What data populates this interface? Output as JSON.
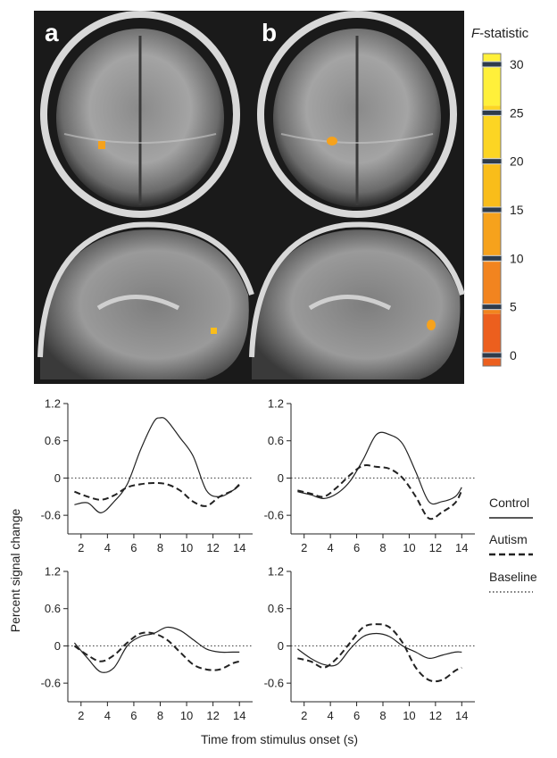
{
  "figure": {
    "panel_labels": [
      "a",
      "b"
    ],
    "colorbar": {
      "title_italic": "F",
      "title_rest": "-statistic",
      "ticks": [
        "30",
        "25",
        "20",
        "15",
        "10",
        "5",
        "0"
      ],
      "values": [
        30,
        25,
        20,
        15,
        10,
        5,
        0
      ],
      "colors": [
        "#fff03a",
        "#fcd523",
        "#f9bd1a",
        "#f6a21c",
        "#f2841f",
        "#ec5f1e"
      ]
    },
    "legend": {
      "entries": [
        {
          "label": "Control",
          "style": "solid"
        },
        {
          "label": "Autism",
          "style": "dashed"
        },
        {
          "label": "Baseline",
          "style": "dotted"
        }
      ]
    },
    "ylabel": "Percent signal change",
    "xlabel": "Time from stimulus onset (s)",
    "brain_images": [
      {
        "panel": "a",
        "view": "coronal",
        "activation": true
      },
      {
        "panel": "b",
        "view": "coronal",
        "activation": true
      },
      {
        "panel": "a",
        "view": "sagittal",
        "activation": true
      },
      {
        "panel": "b",
        "view": "sagittal",
        "activation": true
      }
    ]
  },
  "chart_data": [
    {
      "type": "line",
      "position": "top-left",
      "xlim": [
        1,
        15
      ],
      "ylim": [
        -0.9,
        1.2
      ],
      "xticks": [
        "2",
        "4",
        "6",
        "8",
        "10",
        "12",
        "14"
      ],
      "yticks": [
        "1.2",
        "0.6",
        "0",
        "-0.6"
      ],
      "baseline": 0,
      "series": [
        {
          "name": "Control",
          "style": "solid",
          "x": [
            1.5,
            2.5,
            3.5,
            4.5,
            5.5,
            6.5,
            7.5,
            8.0,
            8.5,
            9.5,
            10.5,
            11.5,
            12.5,
            13.5,
            14.0
          ],
          "y": [
            -0.43,
            -0.4,
            -0.56,
            -0.38,
            -0.1,
            0.45,
            0.9,
            0.97,
            0.93,
            0.65,
            0.35,
            -0.2,
            -0.3,
            -0.2,
            -0.12
          ]
        },
        {
          "name": "Autism",
          "style": "dashed",
          "x": [
            1.5,
            2.5,
            3.5,
            4.5,
            5.5,
            6.5,
            7.5,
            8.5,
            9.5,
            10.5,
            11.5,
            12.5,
            13.5,
            14.0
          ],
          "y": [
            -0.22,
            -0.3,
            -0.35,
            -0.28,
            -0.15,
            -0.1,
            -0.08,
            -0.1,
            -0.2,
            -0.38,
            -0.45,
            -0.3,
            -0.2,
            -0.1
          ]
        }
      ]
    },
    {
      "type": "line",
      "position": "top-right",
      "xlim": [
        1,
        15
      ],
      "ylim": [
        -0.9,
        1.2
      ],
      "xticks": [
        "2",
        "4",
        "6",
        "8",
        "10",
        "12",
        "14"
      ],
      "yticks": [
        "1.2",
        "0.6",
        "0",
        "-0.6"
      ],
      "baseline": 0,
      "series": [
        {
          "name": "Control",
          "style": "solid",
          "x": [
            1.5,
            2.5,
            3.5,
            4.5,
            5.5,
            6.5,
            7.5,
            8.5,
            9.5,
            10.5,
            11.5,
            12.5,
            13.5,
            14.0
          ],
          "y": [
            -0.22,
            -0.27,
            -0.33,
            -0.25,
            -0.05,
            0.3,
            0.7,
            0.7,
            0.55,
            0.1,
            -0.38,
            -0.38,
            -0.3,
            -0.15
          ]
        },
        {
          "name": "Autism",
          "style": "dashed",
          "x": [
            1.5,
            2.5,
            3.5,
            4.5,
            5.5,
            6.5,
            7.5,
            8.5,
            9.5,
            10.5,
            11.5,
            12.5,
            13.5,
            14.0
          ],
          "y": [
            -0.2,
            -0.25,
            -0.3,
            -0.15,
            0.05,
            0.2,
            0.18,
            0.15,
            0.0,
            -0.3,
            -0.65,
            -0.55,
            -0.4,
            -0.2
          ]
        }
      ]
    },
    {
      "type": "line",
      "position": "bottom-left",
      "xlim": [
        1,
        15
      ],
      "ylim": [
        -0.9,
        1.2
      ],
      "xticks": [
        "2",
        "4",
        "6",
        "8",
        "10",
        "12",
        "14"
      ],
      "yticks": [
        "1.2",
        "0.6",
        "0",
        "-0.6"
      ],
      "baseline": 0,
      "series": [
        {
          "name": "Control",
          "style": "solid",
          "x": [
            1.5,
            2.5,
            3.5,
            4.5,
            5.5,
            6.5,
            7.5,
            8.5,
            9.5,
            10.5,
            11.5,
            12.5,
            13.5,
            14.0
          ],
          "y": [
            0.05,
            -0.2,
            -0.42,
            -0.35,
            0.0,
            0.15,
            0.2,
            0.3,
            0.25,
            0.1,
            -0.05,
            -0.1,
            -0.1,
            -0.1
          ]
        },
        {
          "name": "Autism",
          "style": "dashed",
          "x": [
            1.5,
            2.5,
            3.5,
            4.5,
            5.5,
            6.5,
            7.5,
            8.5,
            9.5,
            10.5,
            11.5,
            12.5,
            13.5,
            14.0
          ],
          "y": [
            0.0,
            -0.15,
            -0.25,
            -0.15,
            0.05,
            0.2,
            0.2,
            0.1,
            -0.1,
            -0.3,
            -0.38,
            -0.38,
            -0.28,
            -0.25
          ]
        }
      ]
    },
    {
      "type": "line",
      "position": "bottom-right",
      "xlim": [
        1,
        15
      ],
      "ylim": [
        -0.9,
        1.2
      ],
      "xticks": [
        "2",
        "4",
        "6",
        "8",
        "10",
        "12",
        "14"
      ],
      "yticks": [
        "1.2",
        "0.6",
        "0",
        "-0.6"
      ],
      "baseline": 0,
      "series": [
        {
          "name": "Control",
          "style": "solid",
          "x": [
            1.5,
            2.5,
            3.5,
            4.5,
            5.5,
            6.5,
            7.5,
            8.5,
            9.5,
            10.5,
            11.5,
            12.5,
            13.5,
            14.0
          ],
          "y": [
            -0.05,
            -0.2,
            -0.3,
            -0.3,
            -0.05,
            0.15,
            0.2,
            0.15,
            0.0,
            -0.1,
            -0.2,
            -0.15,
            -0.1,
            -0.1
          ]
        },
        {
          "name": "Autism",
          "style": "dashed",
          "x": [
            1.5,
            2.5,
            3.5,
            4.5,
            5.5,
            6.5,
            7.5,
            8.5,
            9.5,
            10.5,
            11.5,
            12.5,
            13.5,
            14.0
          ],
          "y": [
            -0.2,
            -0.25,
            -0.35,
            -0.2,
            0.05,
            0.3,
            0.35,
            0.3,
            0.05,
            -0.35,
            -0.55,
            -0.55,
            -0.4,
            -0.35
          ]
        }
      ]
    }
  ]
}
